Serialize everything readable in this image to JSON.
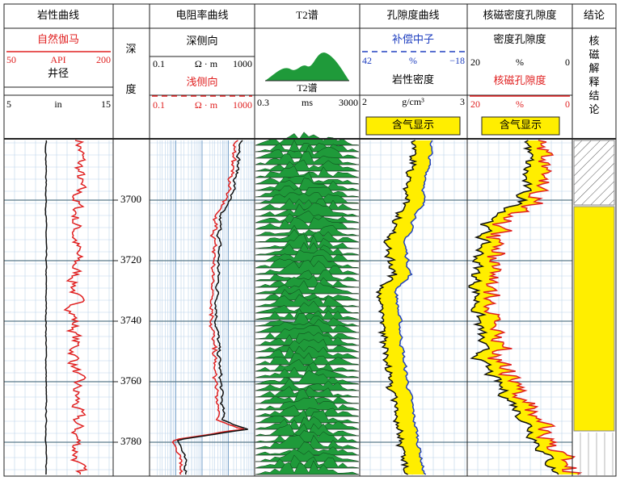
{
  "tracks": [
    {
      "title": "岩性曲线",
      "curves": [
        {
          "name": "自然伽马",
          "min": "50",
          "unit": "API",
          "max": "200"
        },
        {
          "name": "井径",
          "min": "5",
          "unit": "in",
          "max": "15"
        }
      ]
    },
    {
      "title": "电阻率曲线",
      "curves": [
        {
          "name": "深侧向",
          "min": "0.1",
          "unit": "Ω · m",
          "max": "1000"
        },
        {
          "name": "浅侧向",
          "min": "0.1",
          "unit": "Ω · m",
          "max": "1000"
        }
      ]
    },
    {
      "title": "T2谱",
      "curves": [
        {
          "name": "T2谱",
          "min": "0.3",
          "unit": "ms",
          "max": "3000"
        }
      ]
    },
    {
      "title": "孔隙度曲线",
      "curves": [
        {
          "name": "补偿中子",
          "min": "42",
          "unit": "%",
          "max": "−18"
        },
        {
          "name": "岩性密度",
          "min": "2",
          "unit": "g/cm³",
          "max": "3"
        }
      ],
      "fill": "含气显示"
    },
    {
      "title": "核磁密度孔隙度",
      "curves": [
        {
          "name": "密度孔隙度",
          "min": "20",
          "unit": "%",
          "max": "0"
        },
        {
          "name": "核磁孔隙度",
          "min": "20",
          "unit": "%",
          "max": "0"
        }
      ],
      "fill": "含气显示"
    }
  ],
  "depth": {
    "title": [
      "深",
      "度"
    ],
    "ticks": [
      3700,
      3720,
      3740,
      3760,
      3780
    ]
  },
  "conclusion": {
    "title": "结论",
    "label": "核磁解释结论"
  }
}
